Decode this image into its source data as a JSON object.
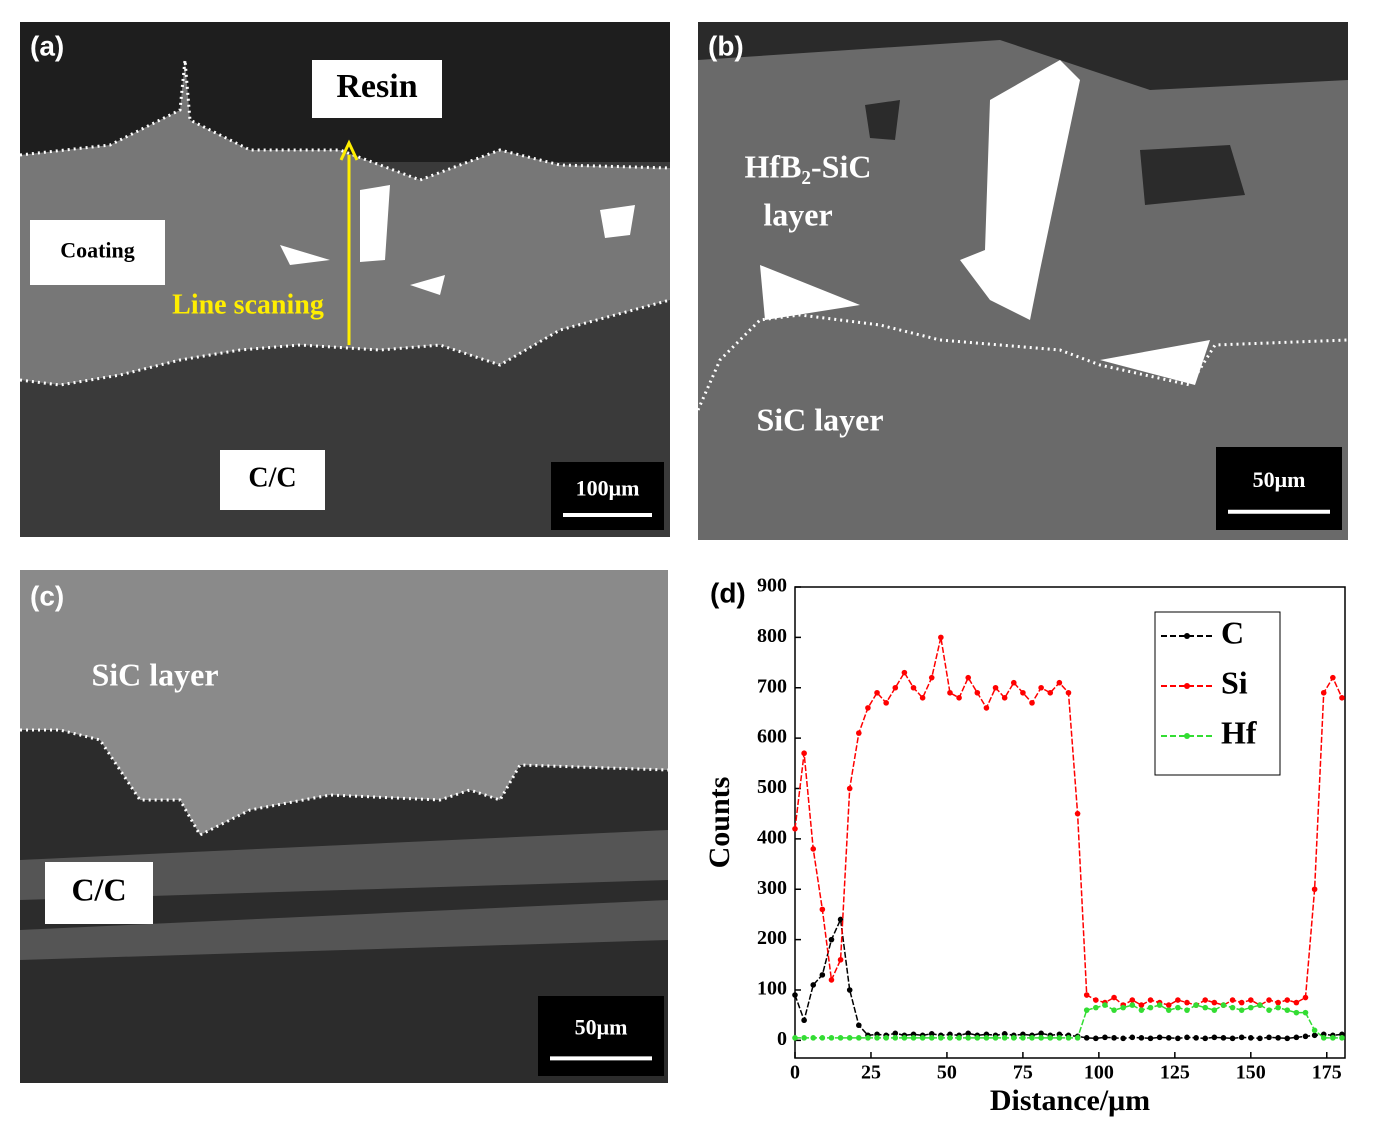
{
  "panels": [
    {
      "label": "(a)",
      "texts": [
        "Resin",
        "Coating",
        "Line scaning",
        "C/C"
      ],
      "scale_bar": "100μm"
    },
    {
      "label": "(b)",
      "texts": [
        "HfB₂-SiC",
        "layer",
        "SiC layer"
      ],
      "scale_bar": "50μm"
    },
    {
      "label": "(c)",
      "texts": [
        "SiC layer",
        "C/C"
      ],
      "scale_bar": "50μm"
    }
  ],
  "chart_data": {
    "type": "line",
    "label": "(d)",
    "x_label": "Distance/μm",
    "y_label": "Counts",
    "x": [
      0,
      3,
      6,
      9,
      12,
      15,
      18,
      21,
      24,
      27,
      30,
      33,
      36,
      39,
      42,
      45,
      48,
      51,
      54,
      57,
      60,
      63,
      66,
      69,
      72,
      75,
      78,
      81,
      84,
      87,
      90,
      93,
      96,
      99,
      102,
      105,
      108,
      111,
      114,
      117,
      120,
      123,
      126,
      129,
      132,
      135,
      138,
      141,
      144,
      147,
      150,
      153,
      156,
      159,
      162,
      165,
      168,
      171,
      174,
      177,
      180
    ],
    "series": [
      {
        "name": "C",
        "color": "#000000",
        "values": [
          90,
          40,
          110,
          130,
          200,
          240,
          100,
          30,
          10,
          12,
          10,
          14,
          10,
          12,
          10,
          13,
          10,
          12,
          10,
          14,
          10,
          12,
          10,
          13,
          10,
          12,
          10,
          14,
          10,
          12,
          10,
          8,
          5,
          4,
          6,
          5,
          4,
          6,
          5,
          4,
          6,
          5,
          4,
          6,
          5,
          4,
          6,
          5,
          4,
          6,
          5,
          4,
          6,
          5,
          4,
          6,
          8,
          10,
          12,
          10,
          12
        ]
      },
      {
        "name": "Si",
        "color": "#ff0000",
        "values": [
          420,
          570,
          380,
          260,
          120,
          160,
          500,
          610,
          660,
          690,
          670,
          700,
          730,
          700,
          680,
          720,
          800,
          690,
          680,
          720,
          690,
          660,
          700,
          680,
          710,
          690,
          670,
          700,
          690,
          710,
          690,
          450,
          90,
          80,
          75,
          85,
          70,
          80,
          70,
          80,
          75,
          70,
          80,
          75,
          70,
          80,
          75,
          70,
          80,
          75,
          80,
          70,
          80,
          75,
          80,
          75,
          85,
          300,
          690,
          720,
          680
        ]
      },
      {
        "name": "Hf",
        "color": "#33dd33",
        "values": [
          5,
          5,
          5,
          5,
          5,
          5,
          5,
          5,
          5,
          5,
          5,
          5,
          5,
          5,
          5,
          5,
          5,
          5,
          5,
          5,
          5,
          5,
          5,
          5,
          5,
          5,
          5,
          5,
          5,
          5,
          5,
          5,
          60,
          65,
          70,
          60,
          65,
          70,
          60,
          65,
          70,
          60,
          65,
          60,
          70,
          65,
          60,
          70,
          65,
          60,
          65,
          70,
          60,
          65,
          60,
          55,
          55,
          20,
          5,
          5,
          5
        ]
      }
    ],
    "xlim": [
      0,
      181
    ],
    "ylim": [
      -35,
      900
    ],
    "xticks": [
      0,
      25,
      50,
      75,
      100,
      125,
      150,
      175
    ],
    "yticks": [
      0,
      100,
      200,
      300,
      400,
      500,
      600,
      700,
      800,
      900
    ]
  }
}
